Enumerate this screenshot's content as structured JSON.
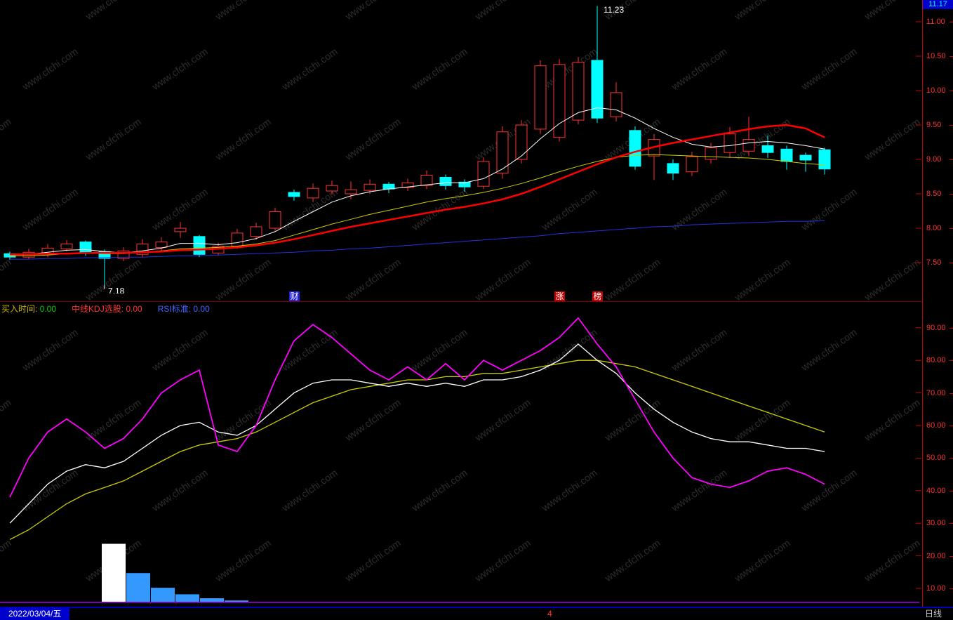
{
  "window": {
    "watermark": "www.cfchi.com"
  },
  "price_panel": {
    "current_price": "11.17",
    "high_label": "11.23",
    "low_label": "7.18",
    "event_markers": [
      {
        "label": "财",
        "index": 16,
        "bg": "#2222dd"
      },
      {
        "label": "涨",
        "index": 30,
        "bg": "#c00000"
      },
      {
        "label": "榜",
        "index": 32,
        "bg": "#c00000"
      }
    ]
  },
  "indicator_panel": {
    "header": [
      {
        "label": "买入时间:",
        "value": "0.00",
        "label_color": "#c8b400",
        "value_color": "#00cc00"
      },
      {
        "label": "中线KDJ选股:",
        "value": "0.00",
        "label_color": "#ff3232",
        "value_color": "#ff3232"
      },
      {
        "label": "RSI标准:",
        "value": "0.00",
        "label_color": "#4466ff",
        "value_color": "#4466ff"
      }
    ]
  },
  "status_bar": {
    "date": "2022/03/04/五",
    "marker": "4",
    "period": "日线"
  },
  "chart_data": {
    "type": "candlestick",
    "title": "",
    "price_axis": {
      "min": 7.05,
      "max": 11.32,
      "ticks": [
        11.0,
        10.5,
        10.0,
        9.5,
        9.0,
        8.5,
        8.0,
        7.5
      ]
    },
    "colors": {
      "up": "#ff3232",
      "down": "#00ffff"
    },
    "candles": [
      [
        7.63,
        7.58,
        7.66,
        7.54
      ],
      [
        7.58,
        7.65,
        7.7,
        7.55
      ],
      [
        7.62,
        7.71,
        7.77,
        7.58
      ],
      [
        7.7,
        7.77,
        7.83,
        7.66
      ],
      [
        7.8,
        7.64,
        7.82,
        7.6
      ],
      [
        7.66,
        7.56,
        7.69,
        7.18
      ],
      [
        7.56,
        7.67,
        7.72,
        7.52
      ],
      [
        7.62,
        7.77,
        7.84,
        7.58
      ],
      [
        7.72,
        7.8,
        7.87,
        7.67
      ],
      [
        7.95,
        8.0,
        8.09,
        7.86
      ],
      [
        7.88,
        7.62,
        7.9,
        7.58
      ],
      [
        7.64,
        7.74,
        7.79,
        7.6
      ],
      [
        7.74,
        7.93,
        7.99,
        7.7
      ],
      [
        7.88,
        8.02,
        8.08,
        7.83
      ],
      [
        8.0,
        8.24,
        8.3,
        7.96
      ],
      [
        8.52,
        8.46,
        8.56,
        8.4
      ],
      [
        8.44,
        8.58,
        8.65,
        8.38
      ],
      [
        8.54,
        8.62,
        8.69,
        8.49
      ],
      [
        8.5,
        8.56,
        8.68,
        8.42
      ],
      [
        8.55,
        8.64,
        8.71,
        8.5
      ],
      [
        8.64,
        8.57,
        8.67,
        8.51
      ],
      [
        8.59,
        8.66,
        8.72,
        8.54
      ],
      [
        8.62,
        8.77,
        8.84,
        8.57
      ],
      [
        8.74,
        8.62,
        8.78,
        8.56
      ],
      [
        8.67,
        8.6,
        8.71,
        8.53
      ],
      [
        8.61,
        8.97,
        9.03,
        8.57
      ],
      [
        8.8,
        9.4,
        9.48,
        8.72
      ],
      [
        9.0,
        9.5,
        9.57,
        8.94
      ],
      [
        9.44,
        10.36,
        10.44,
        9.37
      ],
      [
        9.32,
        10.38,
        10.46,
        9.26
      ],
      [
        9.57,
        10.41,
        10.49,
        9.51
      ],
      [
        10.44,
        9.6,
        11.23,
        9.53
      ],
      [
        9.62,
        9.97,
        10.12,
        9.55
      ],
      [
        9.42,
        8.9,
        9.48,
        8.85
      ],
      [
        9.05,
        9.29,
        9.37,
        8.7
      ],
      [
        8.94,
        8.8,
        9.0,
        8.7
      ],
      [
        8.82,
        9.04,
        9.11,
        8.76
      ],
      [
        9.0,
        9.17,
        9.24,
        8.94
      ],
      [
        9.1,
        9.37,
        9.47,
        9.02
      ],
      [
        9.12,
        9.29,
        9.62,
        9.05
      ],
      [
        9.2,
        9.1,
        9.35,
        9.02
      ],
      [
        9.15,
        8.97,
        9.2,
        8.85
      ],
      [
        9.06,
        8.99,
        9.1,
        8.82
      ],
      [
        9.14,
        8.86,
        9.17,
        8.78
      ]
    ],
    "high_point": {
      "index": 32,
      "price": 11.23,
      "label": "11.23"
    },
    "low_point": {
      "index": 6,
      "price": 7.18,
      "label": "7.18"
    },
    "overlays": [
      {
        "name": "ma-blue",
        "color": "#2233dd",
        "width": 1,
        "values": [
          7.55,
          7.55,
          7.56,
          7.56,
          7.57,
          7.57,
          7.58,
          7.58,
          7.59,
          7.6,
          7.6,
          7.61,
          7.62,
          7.63,
          7.64,
          7.65,
          7.67,
          7.68,
          7.7,
          7.71,
          7.73,
          7.75,
          7.77,
          7.79,
          7.81,
          7.83,
          7.85,
          7.87,
          7.89,
          7.92,
          7.94,
          7.96,
          7.98,
          8.0,
          8.02,
          8.03,
          8.05,
          8.06,
          8.07,
          8.08,
          8.09,
          8.1,
          8.1,
          8.11
        ]
      },
      {
        "name": "ma-yellow",
        "color": "#cccc00",
        "width": 1,
        "values": [
          7.6,
          7.6,
          7.61,
          7.63,
          7.64,
          7.63,
          7.63,
          7.65,
          7.67,
          7.7,
          7.71,
          7.72,
          7.74,
          7.77,
          7.82,
          7.9,
          7.98,
          8.06,
          8.13,
          8.2,
          8.26,
          8.32,
          8.38,
          8.43,
          8.47,
          8.52,
          8.58,
          8.65,
          8.73,
          8.82,
          8.9,
          8.97,
          9.03,
          9.06,
          9.07,
          9.06,
          9.05,
          9.04,
          9.03,
          9.02,
          9.0,
          8.97,
          8.94,
          8.92
        ]
      },
      {
        "name": "ma-white",
        "color": "#ffffff",
        "width": 1,
        "values": [
          7.61,
          7.62,
          7.65,
          7.68,
          7.69,
          7.66,
          7.64,
          7.67,
          7.71,
          7.78,
          7.78,
          7.76,
          7.79,
          7.85,
          7.95,
          8.1,
          8.24,
          8.38,
          8.47,
          8.53,
          8.57,
          8.6,
          8.63,
          8.66,
          8.66,
          8.72,
          8.86,
          9.05,
          9.3,
          9.52,
          9.68,
          9.75,
          9.72,
          9.6,
          9.45,
          9.32,
          9.22,
          9.18,
          9.2,
          9.24,
          9.26,
          9.24,
          9.2,
          9.15
        ]
      },
      {
        "name": "ma-red",
        "color": "#ff0000",
        "width": 2.5,
        "values": [
          7.62,
          7.62,
          7.63,
          7.63,
          7.64,
          7.64,
          7.64,
          7.65,
          7.66,
          7.68,
          7.69,
          7.7,
          7.72,
          7.75,
          7.79,
          7.84,
          7.9,
          7.96,
          8.02,
          8.07,
          8.12,
          8.17,
          8.22,
          8.27,
          8.31,
          8.36,
          8.42,
          8.5,
          8.6,
          8.71,
          8.82,
          8.93,
          9.03,
          9.11,
          9.18,
          9.24,
          9.29,
          9.34,
          9.39,
          9.44,
          9.48,
          9.5,
          9.45,
          9.32
        ]
      }
    ],
    "indicator": {
      "ticks": [
        90,
        80,
        70,
        60,
        50,
        40,
        30,
        20,
        10
      ],
      "series": [
        {
          "name": "D",
          "color": "#cccc00",
          "width": 1.3,
          "values": [
            25,
            28,
            32,
            36,
            39,
            41,
            43,
            46,
            49,
            52,
            54,
            55,
            56,
            58,
            61,
            64,
            67,
            69,
            71,
            72,
            73,
            74,
            74,
            75,
            75,
            76,
            76,
            77,
            78,
            79,
            80,
            80,
            79,
            78,
            76,
            74,
            72,
            70,
            68,
            66,
            64,
            62,
            60,
            58
          ]
        },
        {
          "name": "K",
          "color": "#ffffff",
          "width": 1.3,
          "values": [
            30,
            36,
            42,
            46,
            48,
            47,
            49,
            53,
            57,
            60,
            61,
            58,
            57,
            60,
            65,
            70,
            73,
            74,
            74,
            73,
            72,
            73,
            72,
            73,
            72,
            74,
            74,
            75,
            77,
            80,
            85,
            80,
            76,
            70,
            65,
            61,
            58,
            56,
            55,
            55,
            54,
            53,
            53,
            52
          ]
        },
        {
          "name": "J",
          "color": "#ff00ff",
          "width": 1.8,
          "values": [
            38,
            50,
            58,
            62,
            58,
            53,
            56,
            62,
            70,
            74,
            77,
            54,
            52,
            60,
            74,
            86,
            91,
            87,
            82,
            77,
            74,
            78,
            74,
            79,
            74,
            80,
            77,
            80,
            83,
            87,
            93,
            85,
            78,
            68,
            58,
            50,
            44,
            42,
            41,
            43,
            46,
            47,
            45,
            42
          ]
        }
      ]
    },
    "signal_bars": {
      "start_index": 6,
      "values": [
        18,
        9,
        4.5,
        2.5,
        1.3,
        0.6
      ],
      "colors": [
        "#ffffff",
        "#3399ff",
        "#3399ff",
        "#3399ff",
        "#3399ff",
        "#3399ff"
      ]
    },
    "baseline_color": "#7700bb"
  }
}
